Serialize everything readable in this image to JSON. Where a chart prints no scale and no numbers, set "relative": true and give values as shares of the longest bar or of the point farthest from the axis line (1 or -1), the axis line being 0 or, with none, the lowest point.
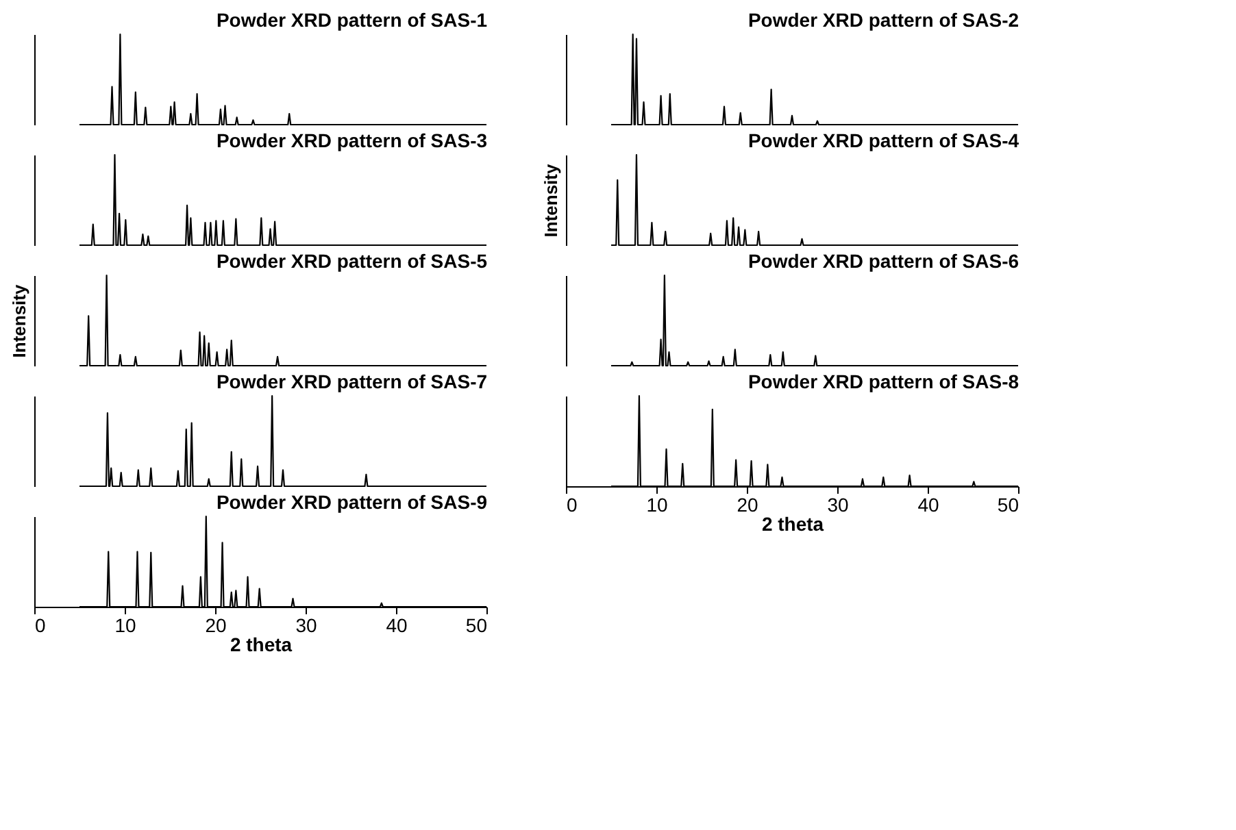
{
  "chart_data": [
    {
      "type": "line",
      "title": "Powder XRD pattern of SAS-1",
      "relative": true,
      "xlim": [
        0,
        50
      ],
      "tick_labels": false,
      "series": [
        {
          "color": "#000000",
          "x": [
            5,
            8.45,
            8.6,
            8.75,
            9.35,
            9.5,
            9.65,
            11.05,
            11.2,
            11.35,
            12.15,
            12.3,
            12.45,
            14.95,
            15.1,
            15.25,
            15.35,
            15.5,
            15.65,
            17.15,
            17.3,
            17.45,
            17.85,
            18.0,
            18.15,
            20.45,
            20.6,
            20.75,
            20.95,
            21.1,
            21.25,
            22.25,
            22.4,
            22.55,
            24.05,
            24.2,
            24.35,
            28.05,
            28.2,
            28.35,
            50
          ],
          "values": [
            0,
            0,
            0.42,
            0,
            0,
            1,
            0,
            0,
            0.36,
            0,
            0,
            0.19,
            0,
            0,
            0.2,
            0,
            0,
            0.25,
            0,
            0,
            0.12,
            0,
            0,
            0.34,
            0,
            0,
            0.17,
            0,
            0,
            0.21,
            0,
            0,
            0.08,
            0,
            0,
            0.05,
            0,
            0,
            0.12,
            0,
            0
          ]
        }
      ]
    },
    {
      "type": "line",
      "title": "Powder XRD pattern of SAS-3",
      "relative": true,
      "xlim": [
        0,
        50
      ],
      "tick_labels": false,
      "series": [
        {
          "color": "#000000",
          "x": [
            5,
            6.35,
            6.5,
            6.65,
            8.75,
            8.9,
            9.05,
            9.25,
            9.4,
            9.55,
            9.95,
            10.1,
            10.25,
            11.85,
            12.0,
            12.15,
            12.45,
            12.6,
            12.75,
            16.75,
            16.9,
            17.05,
            17.15,
            17.3,
            17.45,
            18.75,
            18.9,
            19.05,
            19.35,
            19.5,
            19.65,
            19.95,
            20.1,
            20.25,
            20.75,
            20.9,
            21.05,
            22.15,
            22.3,
            22.45,
            24.95,
            25.1,
            25.25,
            25.95,
            26.1,
            26.25,
            26.45,
            26.6,
            26.75,
            50
          ],
          "values": [
            0,
            0,
            0.23,
            0,
            0,
            1,
            0,
            0,
            0.35,
            0,
            0,
            0.28,
            0,
            0,
            0.12,
            0,
            0,
            0.1,
            0,
            0,
            0.44,
            0,
            0,
            0.3,
            0,
            0,
            0.25,
            0,
            0,
            0.25,
            0,
            0,
            0.27,
            0,
            0,
            0.27,
            0,
            0,
            0.29,
            0,
            0,
            0.3,
            0,
            0,
            0.18,
            0,
            0,
            0.26,
            0,
            0
          ]
        }
      ]
    },
    {
      "type": "line",
      "title": "Powder XRD pattern of SAS-5",
      "ylabel": "Intensity",
      "relative": true,
      "xlim": [
        0,
        50
      ],
      "tick_labels": false,
      "series": [
        {
          "color": "#000000",
          "x": [
            5,
            5.85,
            6.0,
            6.15,
            7.85,
            8.0,
            8.15,
            9.35,
            9.5,
            9.65,
            11.05,
            11.2,
            11.35,
            16.05,
            16.2,
            16.35,
            18.15,
            18.3,
            18.45,
            18.65,
            18.8,
            18.95,
            19.15,
            19.3,
            19.45,
            20.05,
            20.2,
            20.35,
            21.15,
            21.3,
            21.45,
            21.65,
            21.8,
            21.95,
            26.75,
            26.9,
            27.05,
            50
          ],
          "values": [
            0,
            0,
            0.55,
            0,
            0,
            1,
            0,
            0,
            0.12,
            0,
            0,
            0.1,
            0,
            0,
            0.17,
            0,
            0,
            0.37,
            0,
            0,
            0.33,
            0,
            0,
            0.25,
            0,
            0,
            0.15,
            0,
            0,
            0.18,
            0,
            0,
            0.28,
            0,
            0,
            0.1,
            0,
            0
          ]
        }
      ]
    },
    {
      "type": "line",
      "title": "Powder XRD pattern of SAS-7",
      "relative": true,
      "xlim": [
        0,
        50
      ],
      "tick_labels": false,
      "series": [
        {
          "color": "#000000",
          "x": [
            5,
            7.95,
            8.1,
            8.25,
            8.35,
            8.5,
            8.65,
            9.45,
            9.6,
            9.75,
            11.35,
            11.5,
            11.65,
            12.75,
            12.9,
            13.05,
            15.75,
            15.9,
            16.05,
            16.65,
            16.8,
            16.95,
            17.25,
            17.4,
            17.55,
            19.15,
            19.3,
            19.45,
            21.65,
            21.8,
            21.95,
            22.75,
            22.9,
            23.05,
            24.55,
            24.7,
            24.85,
            26.15,
            26.3,
            26.45,
            27.35,
            27.5,
            27.65,
            36.55,
            36.7,
            36.85,
            50
          ],
          "values": [
            0,
            0,
            0.81,
            0,
            0,
            0.2,
            0,
            0,
            0.15,
            0,
            0,
            0.18,
            0,
            0,
            0.2,
            0,
            0,
            0.17,
            0,
            0,
            0.63,
            0,
            0,
            0.7,
            0,
            0,
            0.08,
            0,
            0,
            0.38,
            0,
            0,
            0.3,
            0,
            0,
            0.22,
            0,
            0,
            1,
            0,
            0,
            0.18,
            0,
            0,
            0.13,
            0,
            0
          ]
        }
      ]
    },
    {
      "type": "line",
      "title": "Powder XRD pattern of SAS-9",
      "xlabel": "2 theta",
      "relative": true,
      "xlim": [
        0,
        50
      ],
      "xticks": [
        0,
        10,
        20,
        30,
        40,
        50
      ],
      "tick_labels": "x",
      "series": [
        {
          "color": "#000000",
          "x": [
            5,
            8.05,
            8.2,
            8.35,
            11.25,
            11.4,
            11.55,
            12.75,
            12.9,
            13.05,
            16.25,
            16.4,
            16.55,
            18.25,
            18.4,
            18.55,
            18.85,
            19.0,
            19.15,
            20.65,
            20.8,
            20.95,
            21.65,
            21.8,
            21.95,
            22.15,
            22.3,
            22.45,
            23.45,
            23.6,
            23.75,
            24.75,
            24.9,
            25.05,
            28.45,
            28.6,
            28.75,
            38.25,
            38.4,
            38.55,
            50
          ],
          "values": [
            0,
            0,
            0.61,
            0,
            0,
            0.61,
            0,
            0,
            0.6,
            0,
            0,
            0.23,
            0,
            0,
            0.33,
            0,
            0,
            1,
            0,
            0,
            0.71,
            0,
            0,
            0.16,
            0,
            0,
            0.18,
            0,
            0,
            0.33,
            0,
            0,
            0.2,
            0,
            0,
            0.09,
            0,
            0,
            0.04,
            0,
            0
          ]
        }
      ]
    },
    {
      "type": "line",
      "title": "Powder XRD pattern of SAS-2",
      "relative": true,
      "xlim": [
        0,
        50
      ],
      "tick_labels": false,
      "series": [
        {
          "color": "#000000",
          "x": [
            5,
            7.25,
            7.4,
            7.55,
            7.65,
            7.8,
            7.95,
            8.45,
            8.6,
            8.75,
            10.35,
            10.5,
            10.65,
            11.35,
            11.5,
            11.65,
            17.35,
            17.5,
            17.65,
            19.15,
            19.3,
            19.45,
            22.55,
            22.7,
            22.85,
            24.85,
            25.0,
            25.15,
            27.65,
            27.8,
            27.95,
            50
          ],
          "values": [
            0,
            0,
            1,
            0,
            0,
            0.95,
            0,
            0,
            0.25,
            0,
            0,
            0.32,
            0,
            0,
            0.34,
            0,
            0,
            0.2,
            0,
            0,
            0.13,
            0,
            0,
            0.39,
            0,
            0,
            0.1,
            0,
            0,
            0.04,
            0,
            0
          ]
        }
      ]
    },
    {
      "type": "line",
      "title": "Powder XRD pattern of SAS-4",
      "ylabel": "Intensity",
      "relative": true,
      "xlim": [
        0,
        50
      ],
      "tick_labels": false,
      "series": [
        {
          "color": "#000000",
          "x": [
            5,
            5.55,
            5.7,
            5.85,
            7.65,
            7.8,
            7.95,
            9.35,
            9.5,
            9.65,
            10.85,
            11.0,
            11.15,
            15.85,
            16.0,
            16.15,
            17.65,
            17.8,
            17.95,
            18.35,
            18.5,
            18.65,
            18.95,
            19.1,
            19.25,
            19.65,
            19.8,
            19.95,
            21.15,
            21.3,
            21.45,
            25.95,
            26.1,
            26.25,
            50
          ],
          "values": [
            0,
            0,
            0.72,
            0,
            0,
            1,
            0,
            0,
            0.25,
            0,
            0,
            0.15,
            0,
            0,
            0.13,
            0,
            0,
            0.27,
            0,
            0,
            0.3,
            0,
            0,
            0.2,
            0,
            0,
            0.17,
            0,
            0,
            0.15,
            0,
            0,
            0.07,
            0,
            0
          ]
        }
      ]
    },
    {
      "type": "line",
      "title": "Powder XRD pattern of SAS-6",
      "relative": true,
      "xlim": [
        0,
        50
      ],
      "tick_labels": false,
      "series": [
        {
          "color": "#000000",
          "x": [
            5,
            7.15,
            7.3,
            7.45,
            10.35,
            10.5,
            10.65,
            10.75,
            10.9,
            11.05,
            11.25,
            11.4,
            11.55,
            13.35,
            13.5,
            13.65,
            15.65,
            15.8,
            15.95,
            17.25,
            17.4,
            17.55,
            18.55,
            18.7,
            18.85,
            22.45,
            22.6,
            22.75,
            23.85,
            24.0,
            24.15,
            27.45,
            27.6,
            27.75,
            50
          ],
          "values": [
            0,
            0,
            0.04,
            0,
            0,
            0.29,
            0,
            0,
            1,
            0,
            0,
            0.15,
            0,
            0,
            0.04,
            0,
            0,
            0.05,
            0,
            0,
            0.1,
            0,
            0,
            0.18,
            0,
            0,
            0.12,
            0,
            0,
            0.15,
            0,
            0,
            0.11,
            0,
            0
          ]
        }
      ]
    },
    {
      "type": "line",
      "title": "Powder XRD pattern of SAS-8",
      "xlabel": "2 theta",
      "relative": true,
      "xlim": [
        0,
        50
      ],
      "xticks": [
        0,
        10,
        20,
        30,
        40,
        50
      ],
      "tick_labels": "x",
      "series": [
        {
          "color": "#000000",
          "x": [
            5,
            7.95,
            8.1,
            8.25,
            10.95,
            11.1,
            11.25,
            12.75,
            12.9,
            13.05,
            16.05,
            16.2,
            16.35,
            18.65,
            18.8,
            18.95,
            20.35,
            20.5,
            20.65,
            22.15,
            22.3,
            22.45,
            23.75,
            23.9,
            24.05,
            32.65,
            32.8,
            32.95,
            34.95,
            35.1,
            35.25,
            37.85,
            38.0,
            38.15,
            44.95,
            45.1,
            45.25,
            50
          ],
          "values": [
            0,
            0,
            1,
            0,
            0,
            0.41,
            0,
            0,
            0.25,
            0,
            0,
            0.85,
            0,
            0,
            0.29,
            0,
            0,
            0.28,
            0,
            0,
            0.24,
            0,
            0,
            0.1,
            0,
            0,
            0.08,
            0,
            0,
            0.1,
            0,
            0,
            0.12,
            0,
            0,
            0.05,
            0,
            0
          ]
        }
      ]
    }
  ]
}
